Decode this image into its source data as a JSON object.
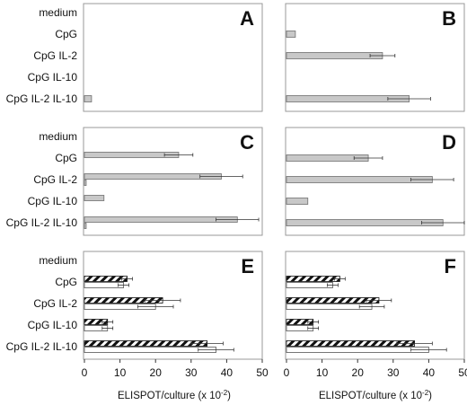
{
  "categories": [
    "medium",
    "CpG",
    "CpG IL-2",
    "CpG IL-10",
    "CpG IL-2 IL-10"
  ],
  "xlabel": "ELISPOT/culture (x 10",
  "xlabel_exp": "-2",
  "xlabel_close": ")",
  "xticks": [
    "0",
    "10",
    "20",
    "30",
    "40",
    "50"
  ],
  "colors": {
    "gray_fill": "#c8c8c8",
    "hatch_ink": "#111111",
    "white_fill": "#ffffff",
    "frame": "#9a9a9a"
  },
  "chart_data": [
    {
      "type": "bar",
      "panel": "A",
      "orientation": "horizontal",
      "xlim": [
        0,
        50
      ],
      "categories": [
        "medium",
        "CpG",
        "CpG IL-2",
        "CpG IL-10",
        "CpG IL-2 IL-10"
      ],
      "series": [
        {
          "style": "gray",
          "values": [
            0,
            0,
            0,
            0,
            2
          ],
          "errors": [
            0,
            0,
            0,
            0,
            0
          ]
        }
      ]
    },
    {
      "type": "bar",
      "panel": "B",
      "orientation": "horizontal",
      "xlim": [
        0,
        50
      ],
      "categories": [
        "medium",
        "CpG",
        "CpG IL-2",
        "CpG IL-10",
        "CpG IL-2 IL-10"
      ],
      "series": [
        {
          "style": "gray",
          "values": [
            0,
            2.5,
            27,
            0,
            34.5
          ],
          "errors": [
            0,
            0,
            3.5,
            0,
            6
          ]
        }
      ]
    },
    {
      "type": "bar",
      "panel": "C",
      "orientation": "horizontal",
      "xlim": [
        0,
        50
      ],
      "categories": [
        "medium",
        "CpG",
        "CpG IL-2",
        "CpG IL-10",
        "CpG IL-2 IL-10"
      ],
      "series": [
        {
          "style": "gray",
          "values": [
            0,
            26.5,
            38.5,
            5.5,
            43
          ],
          "errors": [
            0,
            4,
            6,
            0,
            6
          ]
        },
        {
          "style": "gray",
          "values": [
            0,
            0,
            0.5,
            0,
            0.5
          ],
          "errors": [
            0,
            0,
            0,
            0,
            0
          ]
        }
      ]
    },
    {
      "type": "bar",
      "panel": "D",
      "orientation": "horizontal",
      "xlim": [
        0,
        50
      ],
      "categories": [
        "medium",
        "CpG",
        "CpG IL-2",
        "CpG IL-10",
        "CpG IL-2 IL-10"
      ],
      "series": [
        {
          "style": "gray",
          "values": [
            0,
            23,
            41,
            6,
            44
          ],
          "errors": [
            0,
            4,
            6,
            0,
            6
          ]
        }
      ]
    },
    {
      "type": "bar",
      "panel": "E",
      "orientation": "horizontal",
      "xlim": [
        0,
        50
      ],
      "categories": [
        "medium",
        "CpG",
        "CpG IL-2",
        "CpG IL-10",
        "CpG IL-2 IL-10"
      ],
      "series": [
        {
          "style": "hatched",
          "values": [
            0,
            12,
            22,
            6.5,
            34.5
          ],
          "errors": [
            0,
            1.5,
            5,
            1.5,
            4.5
          ]
        },
        {
          "style": "white",
          "values": [
            0,
            11,
            20,
            6.5,
            37
          ],
          "errors": [
            0,
            1.5,
            5,
            1.5,
            5
          ]
        }
      ]
    },
    {
      "type": "bar",
      "panel": "F",
      "orientation": "horizontal",
      "xlim": [
        0,
        50
      ],
      "categories": [
        "medium",
        "CpG",
        "CpG IL-2",
        "CpG IL-10",
        "CpG IL-2 IL-10"
      ],
      "series": [
        {
          "style": "hatched",
          "values": [
            0,
            15,
            26,
            7.5,
            36
          ],
          "errors": [
            0,
            1.5,
            3.5,
            1.5,
            5
          ]
        },
        {
          "style": "white",
          "values": [
            0,
            13,
            24,
            7.5,
            40
          ],
          "errors": [
            0,
            1.5,
            3.5,
            1.5,
            5
          ]
        }
      ]
    }
  ]
}
